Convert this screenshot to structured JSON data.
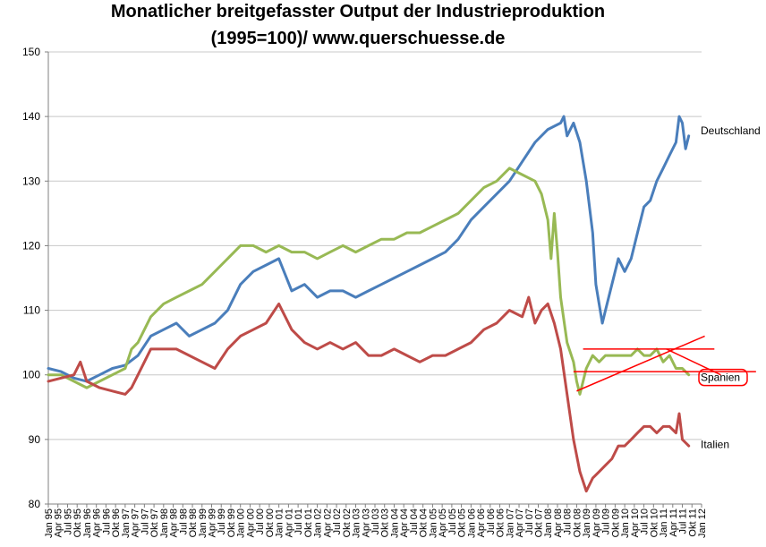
{
  "chart_data": {
    "type": "line",
    "title_line1": "Monatlicher breitgefasster  Output der Industrieproduktion",
    "title_line2": "(1995=100)/  www.querschuesse.de",
    "ylim": [
      80,
      150
    ],
    "yticks": [
      "80",
      "90",
      "100",
      "110",
      "120",
      "130",
      "140",
      "150"
    ],
    "xlim": [
      0,
      204
    ],
    "xtick_step": 3,
    "xtick_labels": [
      "Jan 95",
      "Apr 95",
      "Jul 95",
      "Okt 95",
      "Jan 96",
      "Apr 96",
      "Jul 96",
      "Okt 96",
      "Jan 97",
      "Apr 97",
      "Jul 97",
      "Okt 97",
      "Jan 98",
      "Apr 98",
      "Jul 98",
      "Okt 98",
      "Jan 99",
      "Apr 99",
      "Jul 99",
      "Okt 99",
      "Jan 00",
      "Apr 00",
      "Jul 00",
      "Okt 00",
      "Jan 01",
      "Apr 01",
      "Jul 01",
      "Okt 01",
      "Jan 02",
      "Apr 02",
      "Jul 02",
      "Okt 02",
      "Jan 03",
      "Apr 03",
      "Jul 03",
      "Okt 03",
      "Jan 04",
      "Apr 04",
      "Jul 04",
      "Okt 04",
      "Jan 05",
      "Apr 05",
      "Jul 05",
      "Okt 05",
      "Jan 06",
      "Apr 06",
      "Jul 06",
      "Okt 06",
      "Jan 07",
      "Apr 07",
      "Jul 07",
      "Okt 07",
      "Jan 08",
      "Apr 08",
      "Jul 08",
      "Okt 08",
      "Jan 09",
      "Apr 09",
      "Jul 09",
      "Okt 09",
      "Jan 10",
      "Apr 10",
      "Jul 10",
      "Okt 10",
      "Jan 11",
      "Apr 11",
      "Jul 11",
      "Okt 11",
      "Jan 12"
    ],
    "grid": true,
    "series": [
      {
        "name": "Deutschland",
        "color": "#4a7ebb",
        "points": [
          [
            0,
            101
          ],
          [
            4,
            100.5
          ],
          [
            8,
            99.5
          ],
          [
            12,
            99
          ],
          [
            16,
            100
          ],
          [
            20,
            101
          ],
          [
            24,
            101.5
          ],
          [
            28,
            103
          ],
          [
            32,
            106
          ],
          [
            36,
            107
          ],
          [
            40,
            108
          ],
          [
            44,
            106
          ],
          [
            48,
            107
          ],
          [
            52,
            108
          ],
          [
            56,
            110
          ],
          [
            60,
            114
          ],
          [
            64,
            116
          ],
          [
            68,
            117
          ],
          [
            72,
            118
          ],
          [
            76,
            113
          ],
          [
            80,
            114
          ],
          [
            84,
            112
          ],
          [
            88,
            113
          ],
          [
            92,
            113
          ],
          [
            96,
            112
          ],
          [
            100,
            113
          ],
          [
            104,
            114
          ],
          [
            108,
            115
          ],
          [
            112,
            116
          ],
          [
            116,
            117
          ],
          [
            120,
            118
          ],
          [
            124,
            119
          ],
          [
            128,
            121
          ],
          [
            132,
            124
          ],
          [
            136,
            126
          ],
          [
            140,
            128
          ],
          [
            144,
            130
          ],
          [
            148,
            133
          ],
          [
            152,
            136
          ],
          [
            156,
            138
          ],
          [
            160,
            139
          ],
          [
            161,
            140
          ],
          [
            162,
            137
          ],
          [
            164,
            139
          ],
          [
            166,
            136
          ],
          [
            168,
            130
          ],
          [
            170,
            122
          ],
          [
            171,
            114
          ],
          [
            172,
            111
          ],
          [
            173,
            108
          ],
          [
            174,
            110
          ],
          [
            176,
            114
          ],
          [
            178,
            118
          ],
          [
            180,
            116
          ],
          [
            182,
            118
          ],
          [
            184,
            122
          ],
          [
            186,
            126
          ],
          [
            188,
            127
          ],
          [
            190,
            130
          ],
          [
            192,
            132
          ],
          [
            194,
            134
          ],
          [
            196,
            136
          ],
          [
            197,
            140
          ],
          [
            198,
            139
          ],
          [
            199,
            135
          ],
          [
            200,
            137
          ]
        ]
      },
      {
        "name": "Spanien",
        "color": "#98b954",
        "points": [
          [
            0,
            100
          ],
          [
            4,
            100
          ],
          [
            8,
            99
          ],
          [
            12,
            98
          ],
          [
            16,
            99
          ],
          [
            20,
            100
          ],
          [
            24,
            101
          ],
          [
            26,
            104
          ],
          [
            28,
            105
          ],
          [
            32,
            109
          ],
          [
            36,
            111
          ],
          [
            40,
            112
          ],
          [
            44,
            113
          ],
          [
            48,
            114
          ],
          [
            52,
            116
          ],
          [
            56,
            118
          ],
          [
            60,
            120
          ],
          [
            64,
            120
          ],
          [
            68,
            119
          ],
          [
            72,
            120
          ],
          [
            76,
            119
          ],
          [
            80,
            119
          ],
          [
            84,
            118
          ],
          [
            88,
            119
          ],
          [
            92,
            120
          ],
          [
            96,
            119
          ],
          [
            100,
            120
          ],
          [
            104,
            121
          ],
          [
            108,
            121
          ],
          [
            112,
            122
          ],
          [
            116,
            122
          ],
          [
            120,
            123
          ],
          [
            124,
            124
          ],
          [
            128,
            125
          ],
          [
            132,
            127
          ],
          [
            136,
            129
          ],
          [
            140,
            130
          ],
          [
            144,
            132
          ],
          [
            148,
            131
          ],
          [
            152,
            130
          ],
          [
            154,
            128
          ],
          [
            156,
            124
          ],
          [
            157,
            118
          ],
          [
            158,
            125
          ],
          [
            159,
            119
          ],
          [
            160,
            112
          ],
          [
            162,
            105
          ],
          [
            164,
            102
          ],
          [
            165,
            99
          ],
          [
            166,
            97
          ],
          [
            168,
            101
          ],
          [
            170,
            103
          ],
          [
            172,
            102
          ],
          [
            174,
            103
          ],
          [
            176,
            103
          ],
          [
            178,
            103
          ],
          [
            180,
            103
          ],
          [
            182,
            103
          ],
          [
            184,
            104
          ],
          [
            186,
            103
          ],
          [
            188,
            103
          ],
          [
            190,
            104
          ],
          [
            192,
            102
          ],
          [
            194,
            103
          ],
          [
            196,
            101
          ],
          [
            198,
            101
          ],
          [
            200,
            100
          ]
        ]
      },
      {
        "name": "Italien",
        "color": "#be4b48",
        "points": [
          [
            0,
            99
          ],
          [
            4,
            99.5
          ],
          [
            8,
            100
          ],
          [
            10,
            102
          ],
          [
            12,
            99
          ],
          [
            16,
            98
          ],
          [
            20,
            97.5
          ],
          [
            24,
            97
          ],
          [
            26,
            98
          ],
          [
            28,
            100
          ],
          [
            32,
            104
          ],
          [
            36,
            104
          ],
          [
            40,
            104
          ],
          [
            44,
            103
          ],
          [
            48,
            102
          ],
          [
            52,
            101
          ],
          [
            56,
            104
          ],
          [
            60,
            106
          ],
          [
            64,
            107
          ],
          [
            68,
            108
          ],
          [
            72,
            111
          ],
          [
            76,
            107
          ],
          [
            80,
            105
          ],
          [
            84,
            104
          ],
          [
            88,
            105
          ],
          [
            92,
            104
          ],
          [
            96,
            105
          ],
          [
            100,
            103
          ],
          [
            104,
            103
          ],
          [
            108,
            104
          ],
          [
            112,
            103
          ],
          [
            116,
            102
          ],
          [
            120,
            103
          ],
          [
            124,
            103
          ],
          [
            128,
            104
          ],
          [
            132,
            105
          ],
          [
            136,
            107
          ],
          [
            140,
            108
          ],
          [
            144,
            110
          ],
          [
            148,
            109
          ],
          [
            150,
            112
          ],
          [
            152,
            108
          ],
          [
            154,
            110
          ],
          [
            156,
            111
          ],
          [
            158,
            108
          ],
          [
            160,
            104
          ],
          [
            162,
            97
          ],
          [
            164,
            90
          ],
          [
            166,
            85
          ],
          [
            168,
            82
          ],
          [
            170,
            84
          ],
          [
            172,
            85
          ],
          [
            174,
            86
          ],
          [
            176,
            87
          ],
          [
            178,
            89
          ],
          [
            180,
            89
          ],
          [
            182,
            90
          ],
          [
            184,
            91
          ],
          [
            186,
            92
          ],
          [
            188,
            92
          ],
          [
            190,
            91
          ],
          [
            192,
            92
          ],
          [
            194,
            92
          ],
          [
            196,
            91
          ],
          [
            197,
            94
          ],
          [
            198,
            90
          ],
          [
            200,
            89
          ]
        ]
      }
    ],
    "series_labels": [
      {
        "series": "Deutschland",
        "text": "Deutschland",
        "y": 137.8
      },
      {
        "series": "Spanien",
        "text": "Spanien",
        "y": 99.6
      },
      {
        "series": "Italien",
        "text": "Italien",
        "y": 89.2
      }
    ],
    "annotations": {
      "color": "#ff0000",
      "lines": [
        {
          "x1": 167,
          "y1": 104,
          "x2": 208,
          "y2": 104
        },
        {
          "x1": 164,
          "y1": 100.5,
          "x2": 221,
          "y2": 100.5
        },
        {
          "x1": 165,
          "y1": 97.5,
          "x2": 205,
          "y2": 106
        },
        {
          "x1": 193,
          "y1": 104,
          "x2": 210,
          "y2": 100
        }
      ],
      "highlight_label": "Spanien"
    }
  }
}
